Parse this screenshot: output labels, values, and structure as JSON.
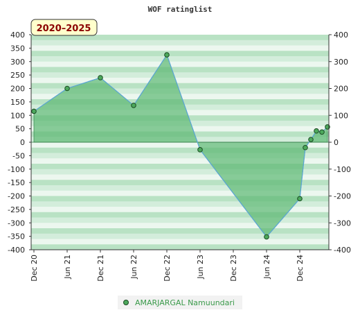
{
  "chart_data": {
    "type": "area",
    "title": "WOF ratinglist",
    "range_label": "2020–2025",
    "ylim": [
      -400,
      400
    ],
    "y_ticks": [
      400,
      350,
      300,
      250,
      200,
      150,
      100,
      50,
      0,
      -50,
      -100,
      -150,
      -200,
      -250,
      -300,
      -350,
      -400
    ],
    "y2_ticks": [
      400,
      300,
      200,
      100,
      0,
      -100,
      -200,
      -300,
      -400
    ],
    "x_tick_labels": [
      "Dec 20",
      "Jun 21",
      "Dec 21",
      "Jun 22",
      "Dec 22",
      "Jun 23",
      "Dec 23",
      "Jun 24",
      "Dec 24"
    ],
    "grid": true,
    "legend_position": "bottom",
    "series": [
      {
        "name": "AMARJARGAL Namuundari",
        "x": [
          "2020-12",
          "2021-06",
          "2021-12",
          "2022-06",
          "2022-12",
          "2023-06",
          "2024-06",
          "2024-12",
          "2025-01",
          "2025-02",
          "2025-03",
          "2025-04",
          "2025-05"
        ],
        "values": [
          115,
          200,
          240,
          137,
          325,
          -28,
          -352,
          -210,
          -20,
          10,
          42,
          38,
          57
        ]
      }
    ],
    "colors": {
      "fill": "#5cb874",
      "line": "#5aa5d6",
      "marker": "#4ca85c",
      "band_dark": "#b9e2c4",
      "band_mid": "#d3eddb",
      "band_light": "#ecf7ef"
    }
  }
}
